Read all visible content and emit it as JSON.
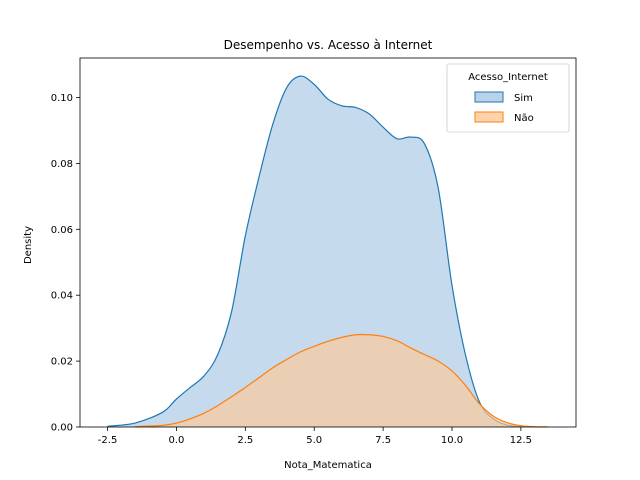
{
  "chart_data": {
    "type": "area",
    "title": "Desempenho vs. Acesso à Internet",
    "xlabel": "Nota_Matematica",
    "ylabel": "Density",
    "xlim": [
      -3.5,
      14.5
    ],
    "ylim": [
      0,
      0.112
    ],
    "xticks": [
      "-2.5",
      "0.0",
      "2.5",
      "5.0",
      "7.5",
      "10.0",
      "12.5"
    ],
    "xtick_values": [
      -2.5,
      0,
      2.5,
      5,
      7.5,
      10,
      12.5
    ],
    "yticks": [
      "0.00",
      "0.02",
      "0.04",
      "0.06",
      "0.08",
      "0.10"
    ],
    "ytick_values": [
      0,
      0.02,
      0.04,
      0.06,
      0.08,
      0.1
    ],
    "grid": false,
    "legend": {
      "title": "Acesso_Internet",
      "placement": "top-right"
    },
    "series": [
      {
        "name": "Sim",
        "color": "#1f77b4",
        "fill": "#a7c6e4",
        "x": [
          -2.5,
          -1.5,
          -0.5,
          0.0,
          0.5,
          1.0,
          1.5,
          2.0,
          2.5,
          3.0,
          3.5,
          4.0,
          4.5,
          5.0,
          5.5,
          6.0,
          6.5,
          7.0,
          7.5,
          8.0,
          8.5,
          9.0,
          9.5,
          10.0,
          10.5,
          11.0,
          11.5,
          12.0,
          12.5
        ],
        "y": [
          0.0002,
          0.0012,
          0.0045,
          0.0085,
          0.012,
          0.0155,
          0.022,
          0.035,
          0.058,
          0.076,
          0.092,
          0.103,
          0.1065,
          0.104,
          0.0995,
          0.0975,
          0.097,
          0.095,
          0.091,
          0.0875,
          0.088,
          0.086,
          0.0725,
          0.043,
          0.0215,
          0.0075,
          0.0025,
          0.0006,
          0.0001
        ]
      },
      {
        "name": "Não",
        "color": "#ff7f0e",
        "fill": "#ffc996",
        "x": [
          -1.5,
          -0.5,
          0.0,
          0.5,
          1.0,
          1.5,
          2.0,
          2.5,
          3.0,
          3.5,
          4.0,
          4.5,
          5.0,
          5.5,
          6.0,
          6.5,
          7.0,
          7.5,
          8.0,
          8.5,
          9.0,
          9.5,
          10.0,
          10.5,
          11.0,
          11.5,
          12.0,
          12.5,
          13.0,
          13.5
        ],
        "y": [
          0.0001,
          0.0005,
          0.0012,
          0.0025,
          0.0042,
          0.0065,
          0.0092,
          0.012,
          0.015,
          0.018,
          0.0205,
          0.0228,
          0.0245,
          0.026,
          0.0272,
          0.028,
          0.028,
          0.0275,
          0.0262,
          0.024,
          0.022,
          0.02,
          0.017,
          0.0125,
          0.007,
          0.0033,
          0.0013,
          0.0004,
          0.0001,
          2e-05
        ]
      }
    ]
  }
}
